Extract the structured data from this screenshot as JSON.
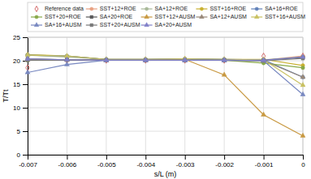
{
  "chart_data": {
    "type": "line",
    "xlabel": "s/L (m)",
    "ylabel": "T/Tt",
    "x": [
      -0.007,
      -0.006,
      -0.005,
      -0.004,
      -0.003,
      -0.002,
      -0.001,
      0.0
    ],
    "xlim": [
      -0.007,
      0.0
    ],
    "xticks": [
      -0.007,
      -0.006,
      -0.005,
      -0.004,
      -0.003,
      -0.002,
      -0.001,
      0
    ],
    "ylim": [
      0,
      25
    ],
    "yticks": [
      0,
      5,
      10,
      15,
      20,
      25
    ],
    "grid": true,
    "legend": "upper left",
    "series": [
      {
        "name": "Reference data",
        "color": "#d06060",
        "marker": "diamond-open",
        "line_style": "none",
        "values": [
          18.5,
          20.1,
          20.1,
          20.1,
          20.1,
          20.1,
          21.0,
          21.0
        ]
      },
      {
        "name": "SST+12+ROE",
        "color": "#e8a080",
        "marker": "circle",
        "line_style": "solid",
        "values": [
          20.2,
          20.2,
          20.1,
          20.1,
          20.1,
          20.1,
          20.1,
          21.0
        ]
      },
      {
        "name": "SA+12+ROE",
        "color": "#a8b898",
        "marker": "circle",
        "line_style": "solid",
        "values": [
          21.2,
          20.8,
          20.3,
          20.3,
          20.3,
          20.2,
          20.2,
          20.8
        ]
      },
      {
        "name": "SST+16+ROE",
        "color": "#c8b030",
        "marker": "circle",
        "line_style": "solid",
        "values": [
          21.3,
          21.0,
          20.3,
          20.3,
          20.4,
          20.3,
          20.3,
          19.0
        ]
      },
      {
        "name": "SA+16+ROE",
        "color": "#6080b8",
        "marker": "circle",
        "line_style": "solid",
        "values": [
          21.2,
          21.0,
          20.3,
          20.3,
          20.4,
          20.3,
          20.2,
          16.5
        ]
      },
      {
        "name": "SST+20+ROE",
        "color": "#88a848",
        "marker": "circle",
        "line_style": "solid",
        "values": [
          20.1,
          20.2,
          20.1,
          20.1,
          20.1,
          20.1,
          19.5,
          18.5
        ]
      },
      {
        "name": "SA+20+ROE",
        "color": "#585858",
        "marker": "square",
        "line_style": "solid",
        "values": [
          20.4,
          20.2,
          20.1,
          20.1,
          20.1,
          20.1,
          20.1,
          20.7
        ]
      },
      {
        "name": "SST+12+AUSM",
        "color": "#c89840",
        "marker": "triangle",
        "line_style": "solid",
        "values": [
          20.3,
          20.2,
          20.1,
          20.2,
          20.3,
          17.0,
          8.5,
          4.0
        ]
      },
      {
        "name": "SA+12+AUSM",
        "color": "#988878",
        "marker": "triangle",
        "line_style": "solid",
        "values": [
          20.2,
          20.2,
          20.1,
          20.1,
          20.1,
          20.1,
          20.0,
          16.5
        ]
      },
      {
        "name": "SST+16+AUSM",
        "color": "#c8c060",
        "marker": "triangle",
        "line_style": "solid",
        "values": [
          21.2,
          21.0,
          20.3,
          20.3,
          20.4,
          20.3,
          20.2,
          14.8
        ]
      },
      {
        "name": "SA+16+AUSM",
        "color": "#7888c0",
        "marker": "triangle",
        "line_style": "solid",
        "values": [
          17.5,
          19.2,
          20.1,
          20.1,
          20.1,
          20.1,
          20.0,
          12.8
        ]
      },
      {
        "name": "SST+20+AUSM",
        "color": "#787878",
        "marker": "square",
        "line_style": "solid",
        "values": [
          20.1,
          20.2,
          20.1,
          20.1,
          20.1,
          20.1,
          20.0,
          20.5
        ]
      },
      {
        "name": "SA+20+AUSM",
        "color": "#8080c8",
        "marker": "triangle",
        "line_style": "solid",
        "values": [
          20.4,
          20.2,
          20.1,
          20.1,
          20.1,
          20.1,
          20.1,
          20.8
        ]
      }
    ]
  }
}
